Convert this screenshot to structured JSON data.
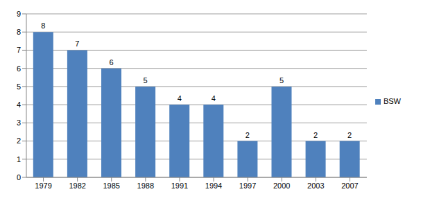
{
  "chart_data": {
    "type": "bar",
    "categories": [
      "1979",
      "1982",
      "1985",
      "1988",
      "1991",
      "1994",
      "1997",
      "2000",
      "2003",
      "2007"
    ],
    "series": [
      {
        "name": "BSW",
        "color": "#4f81bd",
        "values": [
          8,
          7,
          6,
          5,
          4,
          4,
          2,
          5,
          2,
          2
        ]
      }
    ],
    "ylim": [
      0,
      9
    ],
    "yticks": [
      0,
      1,
      2,
      3,
      4,
      5,
      6,
      7,
      8,
      9
    ],
    "grid": true,
    "legend": "right",
    "data_labels": true
  }
}
